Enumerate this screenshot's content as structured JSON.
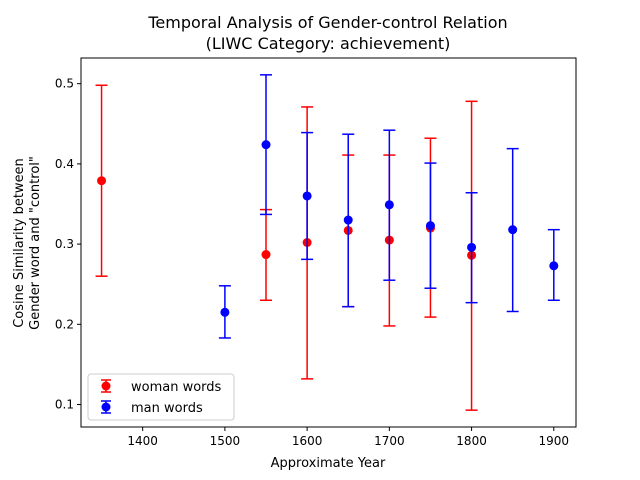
{
  "chart_data": {
    "type": "scatter",
    "title_line1": "Temporal Analysis of Gender-control Relation",
    "title_line2": "(LIWC Category: achievement)",
    "xlabel": "Approximate Year",
    "ylabel_line1": "Cosine Similarity between",
    "ylabel_line2": "Gender word and \"control\"",
    "xlim": [
      1325,
      1927
    ],
    "ylim": [
      0.072,
      0.532
    ],
    "x_ticks": [
      1400,
      1500,
      1600,
      1700,
      1800,
      1900
    ],
    "y_ticks": [
      0.1,
      0.2,
      0.3,
      0.4,
      0.5
    ],
    "legend_position": "lower-left",
    "series": [
      {
        "name": "woman words",
        "color": "#ff0000",
        "points": [
          {
            "x": 1350,
            "y": 0.379,
            "low": 0.26,
            "high": 0.498
          },
          {
            "x": 1550,
            "y": 0.287,
            "low": 0.23,
            "high": 0.343
          },
          {
            "x": 1600,
            "y": 0.302,
            "low": 0.132,
            "high": 0.471
          },
          {
            "x": 1650,
            "y": 0.317,
            "low": 0.222,
            "high": 0.411
          },
          {
            "x": 1700,
            "y": 0.305,
            "low": 0.198,
            "high": 0.411
          },
          {
            "x": 1750,
            "y": 0.32,
            "low": 0.209,
            "high": 0.432
          },
          {
            "x": 1800,
            "y": 0.286,
            "low": 0.093,
            "high": 0.478
          }
        ]
      },
      {
        "name": "man words",
        "color": "#0000ff",
        "points": [
          {
            "x": 1500,
            "y": 0.215,
            "low": 0.183,
            "high": 0.248
          },
          {
            "x": 1550,
            "y": 0.424,
            "low": 0.337,
            "high": 0.511
          },
          {
            "x": 1600,
            "y": 0.36,
            "low": 0.281,
            "high": 0.439
          },
          {
            "x": 1650,
            "y": 0.33,
            "low": 0.222,
            "high": 0.437
          },
          {
            "x": 1700,
            "y": 0.349,
            "low": 0.255,
            "high": 0.442
          },
          {
            "x": 1750,
            "y": 0.323,
            "low": 0.245,
            "high": 0.401
          },
          {
            "x": 1800,
            "y": 0.296,
            "low": 0.227,
            "high": 0.364
          },
          {
            "x": 1850,
            "y": 0.318,
            "low": 0.216,
            "high": 0.419
          },
          {
            "x": 1900,
            "y": 0.273,
            "low": 0.23,
            "high": 0.318
          }
        ]
      }
    ]
  }
}
